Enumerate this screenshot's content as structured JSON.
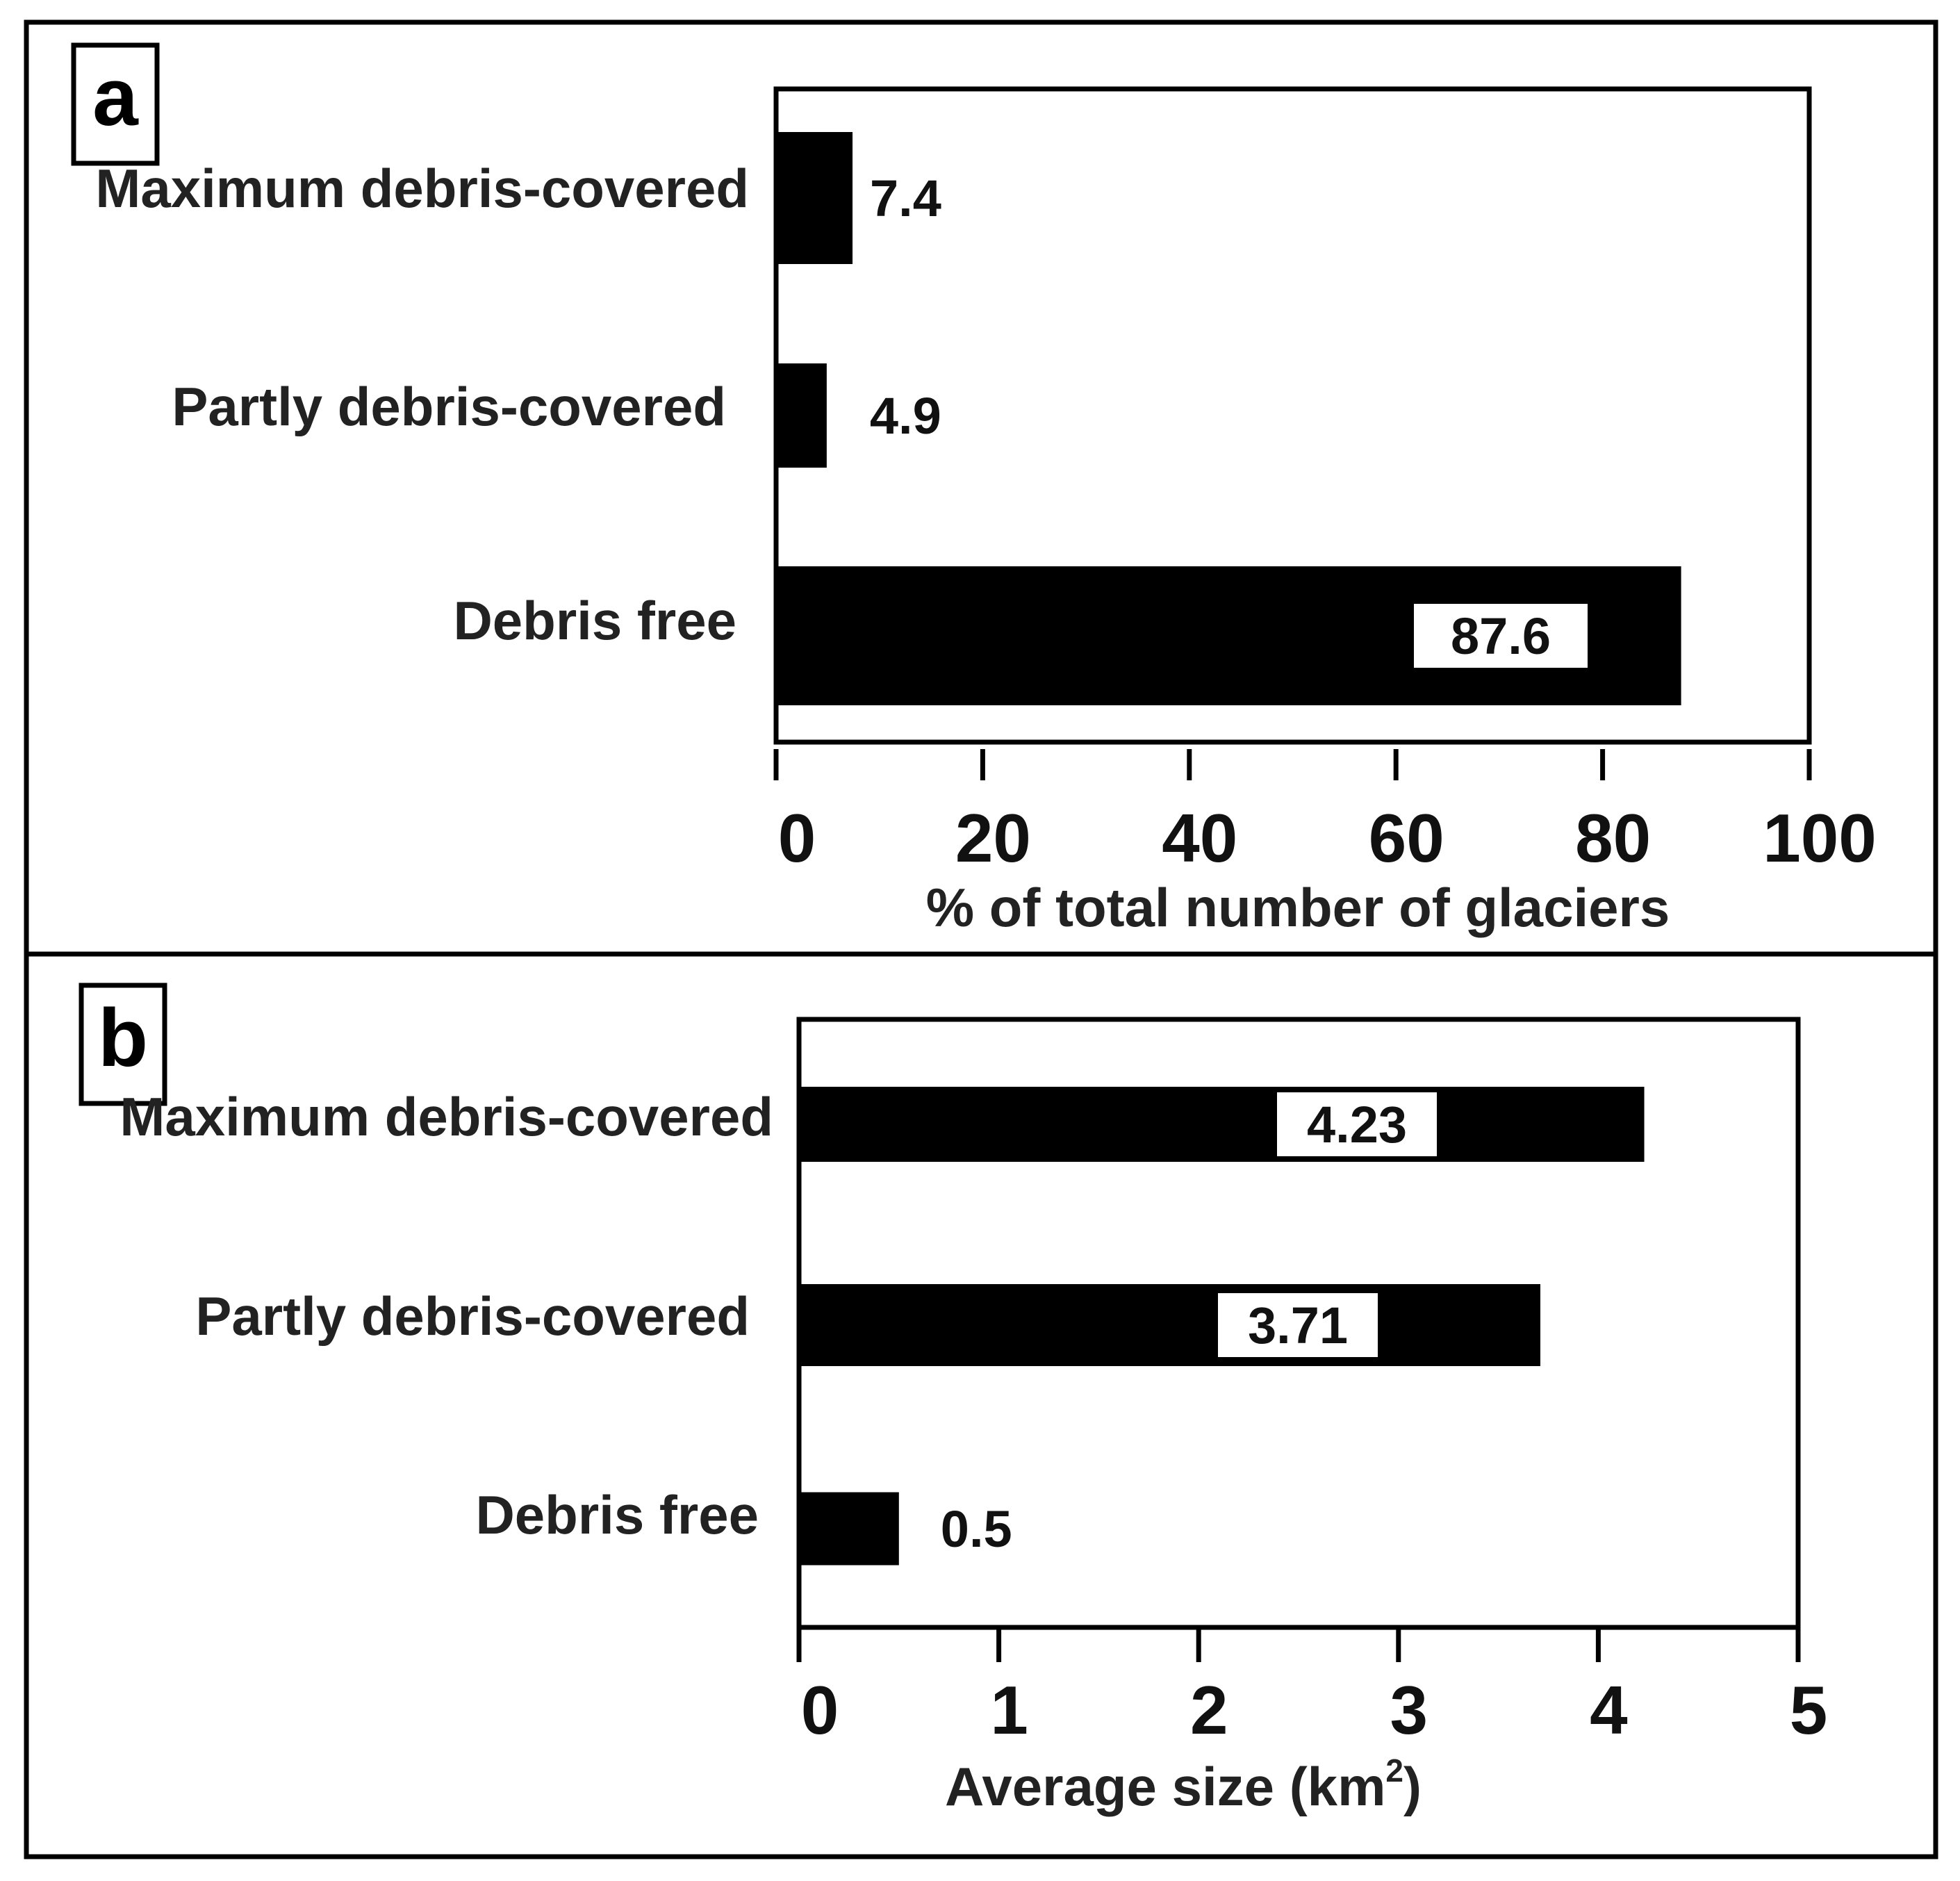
{
  "chart_data": [
    {
      "panel_label": "a",
      "type": "bar",
      "orientation": "horizontal",
      "categories": [
        "Maximum debris-covered",
        "Partly debris-covered",
        "Debris free"
      ],
      "values": [
        7.4,
        4.9,
        87.6
      ],
      "value_labels": [
        "7.4",
        "4.9",
        "87.6"
      ],
      "xlabel": "% of total number of glaciers",
      "xlim": [
        0,
        100
      ],
      "xticks": [
        0,
        20,
        40,
        60,
        80,
        100
      ],
      "tick_labels": [
        "0",
        "20",
        "40",
        "60",
        "80",
        "100"
      ],
      "bar_color": "#000000"
    },
    {
      "panel_label": "b",
      "type": "bar",
      "orientation": "horizontal",
      "categories": [
        "Maximum debris-covered",
        "Partly debris-covered",
        "Debris free"
      ],
      "values": [
        4.23,
        3.71,
        0.5
      ],
      "value_labels": [
        "4.23",
        "3.71",
        "0.5"
      ],
      "xlabel_main": "Average size (km",
      "xlabel_sup": "2",
      "xlabel_end": ")",
      "xlim": [
        0,
        5
      ],
      "xticks": [
        0,
        1,
        2,
        3,
        4,
        5
      ],
      "tick_labels": [
        "0",
        "1",
        "2",
        "3",
        "4",
        "5"
      ],
      "bar_color": "#000000"
    }
  ]
}
